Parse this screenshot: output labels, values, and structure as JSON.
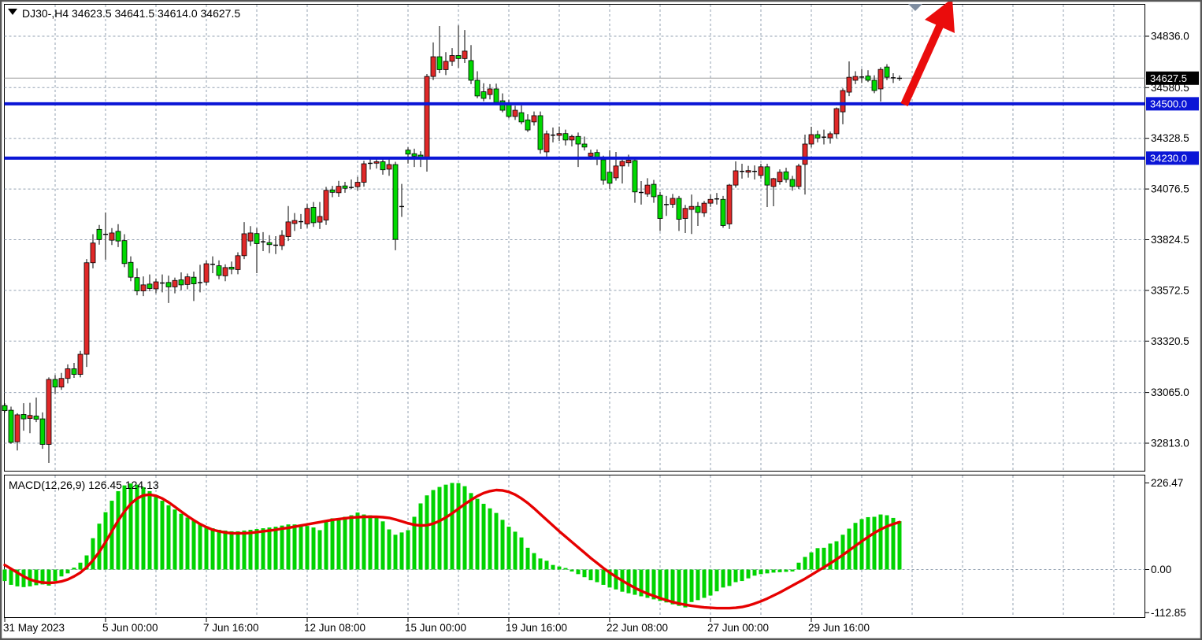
{
  "header": {
    "symbol_info": "DJ30-,H4  34623.5 34641.5 34614.0 34627.5"
  },
  "macd": {
    "label": "MACD(12,26,9) 126.45 124.13",
    "axis": [
      {
        "value": 226.47,
        "label": "226.47"
      },
      {
        "value": 0,
        "label": "0.00"
      },
      {
        "value": -112.85,
        "label": "-112.85"
      }
    ]
  },
  "price_axis": {
    "badge_current": {
      "value": 34627.5,
      "label": "34627.5"
    },
    "levels": [
      {
        "value": 34836.0,
        "label": "34836.0"
      },
      {
        "value": 34580.5,
        "label": "34580.5"
      },
      {
        "value": 34328.5,
        "label": "34328.5"
      },
      {
        "value": 34076.5,
        "label": "34076.5"
      },
      {
        "value": 33824.5,
        "label": "33824.5"
      },
      {
        "value": 33572.5,
        "label": "33572.5"
      },
      {
        "value": 33320.5,
        "label": "33320.5"
      },
      {
        "value": 33065.0,
        "label": "33065.0"
      },
      {
        "value": 32813.0,
        "label": "32813.0"
      }
    ]
  },
  "time_axis": {
    "labels": [
      {
        "bar": 0,
        "label": "31 May 2023"
      },
      {
        "bar": 16,
        "label": "5 Jun 00:00"
      },
      {
        "bar": 32,
        "label": "7 Jun 16:00"
      },
      {
        "bar": 48,
        "label": "12 Jun 08:00"
      },
      {
        "bar": 64,
        "label": "15 Jun 00:00"
      },
      {
        "bar": 80,
        "label": "19 Jun 16:00"
      },
      {
        "bar": 96,
        "label": "22 Jun 08:00"
      },
      {
        "bar": 112,
        "label": "27 Jun 00:00"
      },
      {
        "bar": 128,
        "label": "29 Jun 16:00"
      }
    ]
  },
  "colors": {
    "bull": "#e02828",
    "bear": "#00d800",
    "wick": "#000000",
    "grid": "#93a1b2",
    "hline": "#0b16d6",
    "signal": "#e60000",
    "histogram": "#00d300",
    "current_price_line": "#9e9e9e",
    "arrow": "#ea0c0c",
    "shift_marker": "#7f8da0",
    "badge_current_bg": "#000000",
    "badge_text": "#ffffff"
  },
  "chart_data": {
    "type": "candlestick",
    "symbol": "DJ30-",
    "timeframe": "H4",
    "title": "DJ30-,H4",
    "ylim": [
      32813.0,
      34836.0
    ],
    "macd_ylim": [
      -112.85,
      226.47
    ],
    "support_resistance": [
      {
        "value": 34500.0,
        "label": "34500.0"
      },
      {
        "value": 34230.0,
        "label": "34230.0"
      }
    ],
    "current_price": 34627.5,
    "annotation": "red-up-arrow",
    "candles": [
      [
        33000,
        33012,
        32965,
        32975
      ],
      [
        32977,
        32995,
        32810,
        32817
      ],
      [
        32820,
        32962,
        32777,
        32954
      ],
      [
        32956,
        33012,
        32875,
        32934
      ],
      [
        32936,
        33014,
        32863,
        32951
      ],
      [
        32948,
        33040,
        32918,
        32932
      ],
      [
        32934,
        32966,
        32785,
        32807
      ],
      [
        32807,
        33140,
        32715,
        33130
      ],
      [
        33130,
        33152,
        33058,
        33092
      ],
      [
        33092,
        33162,
        33078,
        33135
      ],
      [
        33135,
        33205,
        33110,
        33183
      ],
      [
        33183,
        33212,
        33138,
        33155
      ],
      [
        33155,
        33272,
        33140,
        33255
      ],
      [
        33255,
        33728,
        33192,
        33710
      ],
      [
        33710,
        33852,
        33682,
        33808
      ],
      [
        33876,
        33898,
        33800,
        33825
      ],
      [
        33852,
        33960,
        33725,
        33848
      ],
      [
        33822,
        33882,
        33798,
        33858
      ],
      [
        33866,
        33902,
        33788,
        33818
      ],
      [
        33820,
        33852,
        33688,
        33706
      ],
      [
        33712,
        33742,
        33618,
        33638
      ],
      [
        33636,
        33682,
        33548,
        33570
      ],
      [
        33570,
        33642,
        33544,
        33600
      ],
      [
        33604,
        33652,
        33568,
        33582
      ],
      [
        33580,
        33632,
        33558,
        33615
      ],
      [
        33607,
        33652,
        33563,
        33610
      ],
      [
        33612,
        33646,
        33510,
        33590
      ],
      [
        33590,
        33636,
        33558,
        33622
      ],
      [
        33625,
        33662,
        33573,
        33600
      ],
      [
        33602,
        33656,
        33578,
        33640
      ],
      [
        33638,
        33666,
        33520,
        33605
      ],
      [
        33610,
        33700,
        33563,
        33612
      ],
      [
        33614,
        33722,
        33598,
        33705
      ],
      [
        33703,
        33742,
        33658,
        33697
      ],
      [
        33695,
        33722,
        33628,
        33647
      ],
      [
        33645,
        33702,
        33618,
        33686
      ],
      [
        33688,
        33716,
        33653,
        33678
      ],
      [
        33676,
        33762,
        33653,
        33745
      ],
      [
        33745,
        33912,
        33728,
        33854
      ],
      [
        33818,
        33892,
        33793,
        33858
      ],
      [
        33855,
        33882,
        33658,
        33805
      ],
      [
        33812,
        33862,
        33768,
        33815
      ],
      [
        33810,
        33847,
        33758,
        33800
      ],
      [
        33798,
        33842,
        33753,
        33795
      ],
      [
        33795,
        33872,
        33773,
        33846
      ],
      [
        33840,
        33992,
        33818,
        33913
      ],
      [
        33905,
        33957,
        33868,
        33920
      ],
      [
        33915,
        33952,
        33878,
        33909
      ],
      [
        33903,
        34002,
        33883,
        33980
      ],
      [
        33985,
        34012,
        33888,
        33909
      ],
      [
        33912,
        34012,
        33878,
        33940
      ],
      [
        33922,
        34087,
        33898,
        34070
      ],
      [
        34072,
        34092,
        34036,
        34060
      ],
      [
        34058,
        34117,
        34038,
        34090
      ],
      [
        34092,
        34112,
        34058,
        34080
      ],
      [
        34082,
        34124,
        34077,
        34085
      ],
      [
        34088,
        34137,
        34068,
        34110
      ],
      [
        34110,
        34217,
        34088,
        34202
      ],
      [
        34202,
        34237,
        34173,
        34205
      ],
      [
        34205,
        34233,
        34178,
        34212
      ],
      [
        34212,
        34232,
        34148,
        34172
      ],
      [
        34175,
        34227,
        34142,
        34198
      ],
      [
        34198,
        34212,
        33772,
        33826
      ],
      [
        33985,
        34102,
        33938,
        33990
      ],
      [
        34270,
        34284,
        34203,
        34250
      ],
      [
        34252,
        34277,
        34186,
        34240
      ],
      [
        34245,
        34264,
        34186,
        34233
      ],
      [
        34233,
        34648,
        34163,
        34636
      ],
      [
        34636,
        34805,
        34618,
        34734
      ],
      [
        34734,
        34887,
        34652,
        34670
      ],
      [
        34670,
        34757,
        34643,
        34711
      ],
      [
        34711,
        34777,
        34688,
        34740
      ],
      [
        34740,
        34890,
        34678,
        34725
      ],
      [
        34725,
        34867,
        34703,
        34762
      ],
      [
        34715,
        34792,
        34598,
        34617
      ],
      [
        34617,
        34662,
        34528,
        34539
      ],
      [
        34560,
        34602,
        34512,
        34527
      ],
      [
        34546,
        34598,
        34522,
        34574
      ],
      [
        34574,
        34600,
        34498,
        34507
      ],
      [
        34515,
        34552,
        34458,
        34468
      ],
      [
        34496,
        34520,
        34428,
        34437
      ],
      [
        34437,
        34490,
        34420,
        34468
      ],
      [
        34456,
        34492,
        34398,
        34410
      ],
      [
        34420,
        34448,
        34360,
        34370
      ],
      [
        34410,
        34462,
        34392,
        34441
      ],
      [
        34441,
        34462,
        34252,
        34273
      ],
      [
        34261,
        34367,
        34238,
        34351
      ],
      [
        34345,
        34382,
        34308,
        34343
      ],
      [
        34343,
        34387,
        34315,
        34352
      ],
      [
        34352,
        34372,
        34293,
        34320
      ],
      [
        34320,
        34347,
        34288,
        34338
      ],
      [
        34338,
        34357,
        34186,
        34300
      ],
      [
        34300,
        34337,
        34268,
        34285
      ],
      [
        34240,
        34272,
        34222,
        34255
      ],
      [
        34258,
        34273,
        34195,
        34233
      ],
      [
        34222,
        34242,
        34098,
        34120
      ],
      [
        34160,
        34269,
        34077,
        34105
      ],
      [
        34132,
        34261,
        34118,
        34191
      ],
      [
        34191,
        34222,
        34104,
        34214
      ],
      [
        34207,
        34247,
        34188,
        34220
      ],
      [
        34218,
        34237,
        34008,
        34062
      ],
      [
        34060,
        34116,
        33999,
        34058
      ],
      [
        34052,
        34130,
        34038,
        34096
      ],
      [
        34100,
        34122,
        34008,
        34038
      ],
      [
        34045,
        34062,
        33868,
        33930
      ],
      [
        33995,
        34042,
        33943,
        34000
      ],
      [
        34000,
        34052,
        33983,
        34030
      ],
      [
        34030,
        34042,
        33868,
        33926
      ],
      [
        33930,
        33997,
        33858,
        33980
      ],
      [
        33975,
        34049,
        33853,
        33990
      ],
      [
        33990,
        34012,
        33893,
        33960
      ],
      [
        33958,
        34017,
        33938,
        34006
      ],
      [
        34006,
        34049,
        33988,
        34025
      ],
      [
        34022,
        34057,
        33999,
        34028
      ],
      [
        34025,
        34042,
        33884,
        33895
      ],
      [
        33903,
        34102,
        33878,
        34096
      ],
      [
        34096,
        34214,
        34083,
        34167
      ],
      [
        34163,
        34202,
        34128,
        34165
      ],
      [
        34160,
        34192,
        34133,
        34168
      ],
      [
        34165,
        34194,
        34124,
        34163
      ],
      [
        34144,
        34202,
        34128,
        34187
      ],
      [
        34187,
        34202,
        33987,
        34096
      ],
      [
        34089,
        34132,
        33991,
        34128
      ],
      [
        34113,
        34174,
        34098,
        34160
      ],
      [
        34162,
        34182,
        34108,
        34124
      ],
      [
        34124,
        34142,
        34068,
        34089
      ],
      [
        34089,
        34202,
        34077,
        34191
      ],
      [
        34199,
        34347,
        34049,
        34300
      ],
      [
        34300,
        34386,
        34283,
        34347
      ],
      [
        34347,
        34367,
        34308,
        34330
      ],
      [
        34332,
        34372,
        34298,
        34335
      ],
      [
        34331,
        34362,
        34302,
        34351
      ],
      [
        34351,
        34482,
        34328,
        34476
      ],
      [
        34460,
        34577,
        34398,
        34566
      ],
      [
        34558,
        34711,
        34538,
        34632
      ],
      [
        34617,
        34662,
        34598,
        34636
      ],
      [
        34630,
        34673,
        34603,
        34634
      ],
      [
        34638,
        34667,
        34608,
        34617
      ],
      [
        34617,
        34642,
        34553,
        34566
      ],
      [
        34574,
        34682,
        34511,
        34671
      ],
      [
        34683,
        34697,
        34618,
        34632
      ],
      [
        34630,
        34652,
        34603,
        34628
      ],
      [
        34623.5,
        34641.5,
        34614.0,
        34627.5
      ]
    ],
    "macd_histogram": [
      -30,
      -40,
      -44,
      -46,
      -44,
      -41,
      -39,
      -42,
      -30,
      -18,
      -10,
      5,
      18,
      37,
      82,
      120,
      150,
      180,
      205,
      220,
      225,
      222,
      215,
      205,
      193,
      180,
      168,
      157,
      146,
      136,
      128,
      120,
      113,
      108,
      104,
      102,
      100,
      100,
      102,
      104,
      106,
      108,
      110,
      112,
      115,
      118,
      118,
      116,
      114,
      110,
      103,
      128,
      134,
      132,
      138,
      142,
      149,
      144,
      142,
      138,
      126,
      105,
      91,
      97,
      103,
      138,
      173,
      194,
      208,
      216,
      222,
      226.47,
      226,
      218,
      200,
      185,
      172,
      160,
      148,
      130,
      112,
      99,
      84,
      57,
      43,
      29,
      23,
      12,
      8,
      4,
      -5,
      -12,
      -20,
      -28,
      -33,
      -40,
      -47,
      -52,
      -58,
      -62,
      -66,
      -70,
      -74,
      -78,
      -82,
      -86,
      -91,
      -95,
      -99,
      -85,
      -80,
      -74,
      -68,
      -57,
      -47,
      -43,
      -33,
      -30,
      -23,
      -16,
      -12,
      -10,
      -8,
      -7,
      -6,
      -5,
      18,
      33,
      45,
      56,
      57,
      68,
      74,
      91,
      107,
      122,
      132,
      137,
      138,
      144,
      142,
      135,
      126.45
    ],
    "macd_signal": [
      12,
      2,
      -8,
      -18,
      -26,
      -31,
      -34,
      -35,
      -34,
      -31,
      -26,
      -18,
      -8,
      6,
      24,
      46,
      72,
      100,
      128,
      152,
      172,
      186,
      194,
      196,
      193,
      186,
      176,
      164,
      152,
      140,
      129,
      119,
      111,
      104,
      100,
      97,
      95,
      95,
      95,
      96,
      98,
      100,
      102,
      104,
      107,
      109,
      112,
      115,
      118,
      121,
      124,
      127,
      130,
      132,
      134,
      136,
      137,
      138,
      138,
      138,
      137,
      135,
      131,
      126,
      121,
      117,
      115,
      116,
      120,
      127,
      136,
      147,
      159,
      171,
      182,
      192,
      200,
      205,
      208,
      207,
      203,
      196,
      186,
      174,
      160,
      145,
      130,
      115,
      100,
      86,
      72,
      58,
      44,
      30,
      17,
      4,
      -8,
      -19,
      -29,
      -39,
      -48,
      -56,
      -63,
      -69,
      -75,
      -80,
      -85,
      -89,
      -92,
      -95,
      -97,
      -99,
      -100,
      -101,
      -101,
      -101,
      -100,
      -98,
      -94,
      -89,
      -83,
      -76,
      -68,
      -60,
      -51,
      -42,
      -33,
      -24,
      -14,
      -4,
      6,
      16,
      27,
      38,
      50,
      62,
      74,
      85,
      96,
      105,
      113,
      119,
      124.13
    ]
  }
}
